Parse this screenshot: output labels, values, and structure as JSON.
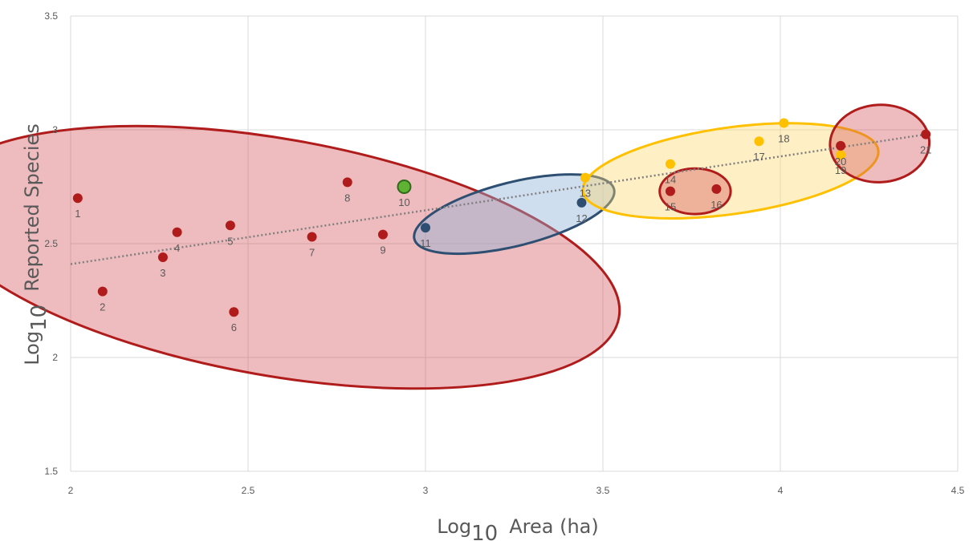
{
  "chart_data": {
    "type": "scatter",
    "title": "",
    "xlabel": {
      "base": "Log",
      "sub": "10",
      "rest": "Area (ha)"
    },
    "ylabel": {
      "base": "Log",
      "sub": "10",
      "rest": "Reported  Species"
    },
    "xlim": [
      2,
      4.5
    ],
    "ylim": [
      1.5,
      3.5
    ],
    "xticks": [
      {
        "value": 2,
        "label": "2"
      },
      {
        "value": 2.5,
        "label": "2.5"
      },
      {
        "value": 3,
        "label": "3"
      },
      {
        "value": 3.5,
        "label": "3.5"
      },
      {
        "value": 4,
        "label": "4"
      },
      {
        "value": 4.5,
        "label": "4.5"
      }
    ],
    "yticks": [
      {
        "value": 1.5,
        "label": "1.5"
      },
      {
        "value": 2,
        "label": "2"
      },
      {
        "value": 2.5,
        "label": "2.5"
      },
      {
        "value": 3,
        "label": "3"
      },
      {
        "value": 3.5,
        "label": "3.5"
      }
    ],
    "grid": true,
    "colors": {
      "red": "#b01c1c",
      "blue": "#2e4f72",
      "yellow": "#ffc000",
      "green": "#4ea72e",
      "grid": "#d9d9d9",
      "trendline": "#7f7f7f"
    },
    "points": [
      {
        "label": "1",
        "x": 2.02,
        "y": 2.7,
        "color": "red"
      },
      {
        "label": "2",
        "x": 2.09,
        "y": 2.29,
        "color": "red"
      },
      {
        "label": "3",
        "x": 2.26,
        "y": 2.44,
        "color": "red"
      },
      {
        "label": "4",
        "x": 2.3,
        "y": 2.55,
        "color": "red"
      },
      {
        "label": "5",
        "x": 2.45,
        "y": 2.58,
        "color": "red"
      },
      {
        "label": "6",
        "x": 2.46,
        "y": 2.2,
        "color": "red"
      },
      {
        "label": "7",
        "x": 2.68,
        "y": 2.53,
        "color": "red"
      },
      {
        "label": "8",
        "x": 2.78,
        "y": 2.77,
        "color": "red"
      },
      {
        "label": "9",
        "x": 2.88,
        "y": 2.54,
        "color": "red"
      },
      {
        "label": "10",
        "x": 2.94,
        "y": 2.75,
        "color": "green"
      },
      {
        "label": "11",
        "x": 3.0,
        "y": 2.57,
        "color": "blue"
      },
      {
        "label": "12",
        "x": 3.44,
        "y": 2.68,
        "color": "blue"
      },
      {
        "label": "13",
        "x": 3.45,
        "y": 2.79,
        "color": "yellow"
      },
      {
        "label": "14",
        "x": 3.69,
        "y": 2.85,
        "color": "yellow"
      },
      {
        "label": "15",
        "x": 3.69,
        "y": 2.73,
        "color": "red"
      },
      {
        "label": "16",
        "x": 3.82,
        "y": 2.74,
        "color": "red"
      },
      {
        "label": "17",
        "x": 3.94,
        "y": 2.95,
        "color": "yellow"
      },
      {
        "label": "18",
        "x": 4.01,
        "y": 3.03,
        "color": "yellow"
      },
      {
        "label": "19",
        "x": 4.17,
        "y": 2.89,
        "color": "yellow"
      },
      {
        "label": "20",
        "x": 4.17,
        "y": 2.93,
        "color": "red"
      },
      {
        "label": "21",
        "x": 4.41,
        "y": 2.98,
        "color": "red"
      }
    ],
    "trendline": {
      "x": [
        2.0,
        4.41
      ],
      "y": [
        2.41,
        2.98
      ]
    },
    "groups": [
      {
        "color": "red",
        "cx": 2.58,
        "cy": 2.44,
        "rx": 0.98,
        "ry": 0.52,
        "angle": 10
      },
      {
        "color": "blue",
        "cx": 3.25,
        "cy": 2.63,
        "rx": 0.29,
        "ry": 0.14,
        "angle": -14
      },
      {
        "color": "yellow",
        "cx": 3.86,
        "cy": 2.82,
        "rx": 0.42,
        "ry": 0.19,
        "angle": -8
      },
      {
        "color": "red",
        "cx": 3.76,
        "cy": 2.73,
        "rx": 0.1,
        "ry": 0.1,
        "angle": 0
      },
      {
        "color": "red",
        "cx": 4.28,
        "cy": 2.94,
        "rx": 0.14,
        "ry": 0.17,
        "angle": -3
      }
    ]
  }
}
